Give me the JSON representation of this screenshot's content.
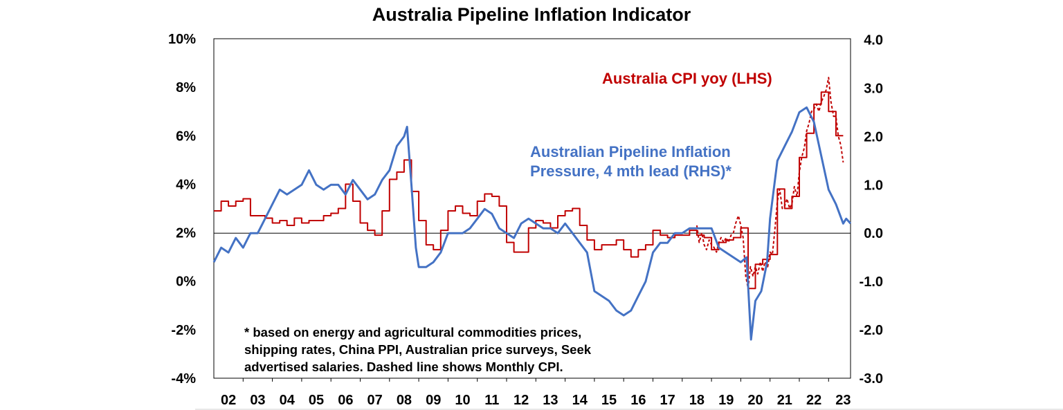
{
  "chart_data": {
    "type": "line",
    "title": "Australia Pipeline Inflation Indicator",
    "xlabel": "",
    "ylabel": "",
    "x_ticks": [
      "02",
      "03",
      "04",
      "05",
      "06",
      "07",
      "08",
      "09",
      "10",
      "11",
      "12",
      "13",
      "14",
      "15",
      "16",
      "17",
      "18",
      "19",
      "20",
      "21",
      "22",
      "23"
    ],
    "x_range": [
      2002.0,
      2023.75
    ],
    "y_left": {
      "range": [
        -4,
        10
      ],
      "ticks": [
        "10%",
        "8%",
        "6%",
        "4%",
        "2%",
        "0%",
        "-2%",
        "-4%"
      ]
    },
    "y_right": {
      "range": [
        -3.0,
        4.5
      ],
      "ticks": [
        "4.0",
        "3.0",
        "2.0",
        "1.0",
        "0.0",
        "-1.0",
        "-2.0",
        "-3.0"
      ],
      "zero_line": 0.0
    },
    "grid": false,
    "legend": "none",
    "annotations": {
      "cpi_label": "Australia CPI yoy (LHS)",
      "pipeline_label_1": "Australian Pipeline Inflation",
      "pipeline_label_2": "Pressure, 4 mth lead (RHS)*",
      "footnote": [
        "* based on energy and agricultural commodities prices,",
        "shipping rates, China PPI, Australian price surveys, Seek",
        "advertised salaries. Dashed line shows Monthly CPI."
      ]
    },
    "colors": {
      "cpi": "#C00000",
      "pipeline": "#4472C4"
    },
    "series": [
      {
        "name": "Australia CPI yoy (LHS)",
        "axis": "left",
        "style": "step",
        "x": [
          2002.0,
          2002.25,
          2002.5,
          2002.75,
          2003.0,
          2003.25,
          2003.5,
          2003.75,
          2004.0,
          2004.25,
          2004.5,
          2004.75,
          2005.0,
          2005.25,
          2005.5,
          2005.75,
          2006.0,
          2006.25,
          2006.5,
          2006.75,
          2007.0,
          2007.25,
          2007.5,
          2007.75,
          2008.0,
          2008.25,
          2008.5,
          2008.75,
          2009.0,
          2009.25,
          2009.5,
          2009.75,
          2010.0,
          2010.25,
          2010.5,
          2010.75,
          2011.0,
          2011.25,
          2011.5,
          2011.75,
          2012.0,
          2012.25,
          2012.5,
          2012.75,
          2013.0,
          2013.25,
          2013.5,
          2013.75,
          2014.0,
          2014.25,
          2014.5,
          2014.75,
          2015.0,
          2015.25,
          2015.5,
          2015.75,
          2016.0,
          2016.25,
          2016.5,
          2016.75,
          2017.0,
          2017.25,
          2017.5,
          2017.75,
          2018.0,
          2018.25,
          2018.5,
          2018.75,
          2019.0,
          2019.25,
          2019.5,
          2019.75,
          2020.0,
          2020.25,
          2020.5,
          2020.75,
          2021.0,
          2021.25,
          2021.5,
          2021.75,
          2022.0,
          2022.25,
          2022.5,
          2022.75,
          2023.0,
          2023.25
        ],
        "values": [
          2.9,
          3.3,
          3.1,
          3.3,
          3.4,
          2.7,
          2.7,
          2.6,
          2.4,
          2.5,
          2.3,
          2.6,
          2.4,
          2.5,
          2.5,
          2.7,
          2.8,
          3.0,
          4.0,
          3.3,
          2.4,
          2.1,
          1.9,
          2.9,
          4.2,
          4.5,
          5.0,
          3.7,
          2.5,
          1.5,
          1.3,
          2.1,
          2.9,
          3.1,
          2.8,
          2.7,
          3.3,
          3.6,
          3.5,
          3.1,
          1.6,
          1.2,
          1.2,
          2.2,
          2.5,
          2.4,
          2.2,
          2.7,
          2.9,
          3.0,
          2.3,
          1.7,
          1.3,
          1.5,
          1.5,
          1.7,
          1.3,
          1.0,
          1.3,
          1.5,
          2.1,
          1.9,
          1.8,
          1.9,
          1.9,
          2.1,
          1.9,
          1.8,
          1.3,
          1.6,
          1.7,
          1.8,
          2.2,
          -0.3,
          0.7,
          0.9,
          1.1,
          3.8,
          3.0,
          3.5,
          5.1,
          6.1,
          7.3,
          7.8,
          7.0,
          6.0
        ]
      },
      {
        "name": "Monthly CPI",
        "axis": "left",
        "style": "dashed",
        "x": [
          2018.5,
          2018.58,
          2018.67,
          2018.75,
          2018.83,
          2018.92,
          2019.0,
          2019.08,
          2019.17,
          2019.25,
          2019.33,
          2019.42,
          2019.5,
          2019.58,
          2019.67,
          2019.75,
          2019.83,
          2019.92,
          2020.0,
          2020.08,
          2020.17,
          2020.25,
          2020.33,
          2020.42,
          2020.5,
          2020.58,
          2020.67,
          2020.75,
          2020.83,
          2020.92,
          2021.0,
          2021.08,
          2021.17,
          2021.25,
          2021.33,
          2021.42,
          2021.5,
          2021.58,
          2021.67,
          2021.75,
          2021.83,
          2021.92,
          2022.0,
          2022.08,
          2022.17,
          2022.25,
          2022.33,
          2022.42,
          2022.5,
          2022.58,
          2022.67,
          2022.75,
          2022.83,
          2022.92,
          2023.0,
          2023.08,
          2023.17,
          2023.25,
          2023.33,
          2023.42,
          2023.5
        ],
        "values": [
          2.3,
          1.6,
          2.0,
          1.5,
          1.3,
          1.7,
          1.5,
          1.4,
          1.2,
          1.6,
          1.8,
          1.6,
          1.8,
          1.6,
          1.9,
          2.0,
          2.4,
          2.7,
          2.3,
          1.8,
          0.2,
          -0.3,
          0.6,
          0.2,
          0.6,
          0.3,
          0.8,
          0.4,
          0.8,
          0.6,
          1.2,
          1.1,
          2.2,
          3.3,
          3.8,
          3.0,
          3.1,
          3.4,
          3.0,
          3.2,
          3.9,
          3.5,
          4.5,
          5.1,
          5.5,
          6.2,
          6.5,
          7.0,
          7.1,
          7.3,
          7.0,
          7.4,
          7.6,
          7.9,
          8.4,
          7.4,
          6.8,
          6.8,
          6.0,
          5.6,
          4.9
        ]
      },
      {
        "name": "Australian Pipeline Inflation Pressure, 4 mth lead (RHS)*",
        "axis": "right",
        "style": "solid",
        "x": [
          2002.0,
          2002.25,
          2002.5,
          2002.75,
          2003.0,
          2003.25,
          2003.5,
          2003.75,
          2004.0,
          2004.25,
          2004.5,
          2004.75,
          2005.0,
          2005.25,
          2005.5,
          2005.75,
          2006.0,
          2006.25,
          2006.5,
          2006.75,
          2007.0,
          2007.25,
          2007.5,
          2007.75,
          2008.0,
          2008.25,
          2008.5,
          2008.6,
          2008.75,
          2008.9,
          2009.0,
          2009.25,
          2009.5,
          2009.75,
          2010.0,
          2010.25,
          2010.5,
          2010.75,
          2011.0,
          2011.25,
          2011.5,
          2011.75,
          2012.0,
          2012.25,
          2012.5,
          2012.75,
          2013.0,
          2013.25,
          2013.5,
          2013.75,
          2014.0,
          2014.25,
          2014.5,
          2014.75,
          2015.0,
          2015.25,
          2015.5,
          2015.75,
          2016.0,
          2016.25,
          2016.5,
          2016.75,
          2017.0,
          2017.25,
          2017.5,
          2017.75,
          2018.0,
          2018.25,
          2018.5,
          2018.75,
          2019.0,
          2019.25,
          2019.5,
          2019.75,
          2020.0,
          2020.2,
          2020.35,
          2020.5,
          2020.7,
          2020.9,
          2021.0,
          2021.25,
          2021.5,
          2021.75,
          2022.0,
          2022.25,
          2022.5,
          2022.75,
          2023.0,
          2023.25,
          2023.5,
          2023.6,
          2023.75
        ],
        "values": [
          -0.6,
          -0.3,
          -0.4,
          -0.1,
          -0.3,
          0.0,
          0.0,
          0.3,
          0.6,
          0.9,
          0.8,
          0.9,
          1.0,
          1.3,
          1.0,
          0.9,
          1.0,
          1.0,
          0.8,
          1.1,
          0.9,
          0.7,
          0.8,
          1.1,
          1.3,
          1.8,
          2.0,
          2.2,
          1.0,
          -0.3,
          -0.7,
          -0.7,
          -0.6,
          -0.4,
          0.0,
          0.0,
          0.0,
          0.1,
          0.3,
          0.5,
          0.4,
          0.1,
          0.0,
          -0.1,
          0.2,
          0.3,
          0.2,
          0.1,
          0.1,
          0.0,
          0.2,
          0.0,
          -0.2,
          -0.4,
          -1.2,
          -1.3,
          -1.4,
          -1.6,
          -1.7,
          -1.6,
          -1.3,
          -1.0,
          -0.4,
          -0.2,
          -0.2,
          0.0,
          0.0,
          0.1,
          0.1,
          0.1,
          0.1,
          -0.3,
          -0.4,
          -0.5,
          -0.6,
          -0.5,
          -2.2,
          -1.4,
          -1.2,
          -0.6,
          0.3,
          1.5,
          1.8,
          2.1,
          2.5,
          2.6,
          2.3,
          1.6,
          0.9,
          0.6,
          0.2,
          0.3,
          0.2
        ]
      }
    ]
  }
}
